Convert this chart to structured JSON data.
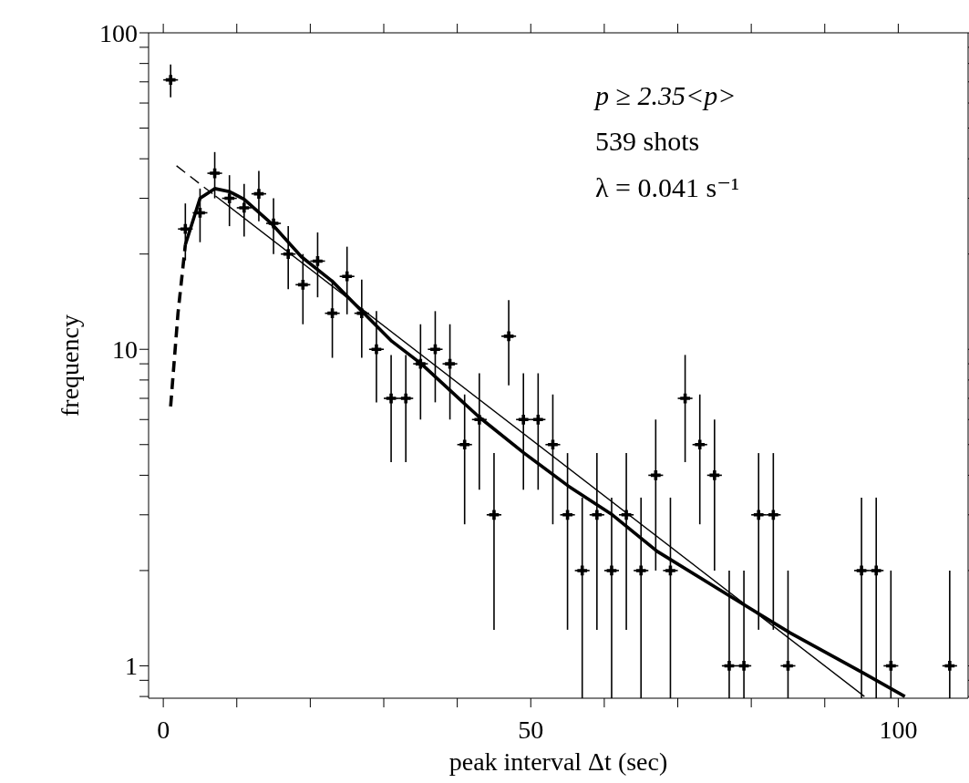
{
  "chart_data": {
    "type": "scatter",
    "xlabel": "peak interval Δt (sec)",
    "ylabel": "frequency",
    "annotations": [
      "p ≥ 2.35<p>",
      "539 shots",
      "λ = 0.041 s⁻¹"
    ],
    "log": "y",
    "xlim": [
      -2,
      109.5
    ],
    "xticks": [
      0,
      {
        "value": 10,
        "label": null
      },
      {
        "value": 20,
        "label": null
      },
      {
        "value": 30,
        "label": null
      },
      {
        "value": 40,
        "label": null
      },
      50,
      {
        "value": 60,
        "label": null
      },
      {
        "value": 70,
        "label": null
      },
      {
        "value": 80,
        "label": null
      },
      {
        "value": 90,
        "label": null
      },
      100
    ],
    "grid": false,
    "ylim": [
      0.79,
      100
    ],
    "yticks": [
      {
        "value": 0.8,
        "label": null
      },
      {
        "value": 0.9,
        "label": null
      },
      1,
      {
        "value": 2,
        "label": null
      },
      {
        "value": 3,
        "label": null
      },
      {
        "value": 4,
        "label": null
      },
      {
        "value": 5,
        "label": null
      },
      {
        "value": 6,
        "label": null
      },
      {
        "value": 7,
        "label": null
      },
      {
        "value": 8,
        "label": null
      },
      {
        "value": 9,
        "label": null
      },
      10,
      {
        "value": 20,
        "label": null
      },
      {
        "value": 30,
        "label": null
      },
      {
        "value": 40,
        "label": null
      },
      {
        "value": 50,
        "label": null
      },
      {
        "value": 60,
        "label": null
      },
      {
        "value": 70,
        "label": null
      },
      {
        "value": 80,
        "label": null
      },
      {
        "value": 90,
        "label": null
      },
      100
    ],
    "series": [
      {
        "color": "#000000",
        "marker": "cross",
        "x": [
          1,
          3,
          5,
          7,
          9,
          11,
          13,
          15,
          17,
          19,
          21,
          23,
          25,
          27,
          29,
          31,
          33,
          35,
          37,
          39,
          41,
          43,
          45,
          47,
          49,
          51,
          53,
          55,
          57,
          59,
          61,
          63,
          65,
          67,
          69,
          71,
          73,
          75,
          77,
          79,
          81,
          83,
          85,
          95,
          97,
          99,
          107
        ],
        "values": [
          71,
          24,
          27,
          36,
          30,
          28,
          31,
          25,
          20,
          16,
          19,
          13,
          17,
          13,
          10,
          7,
          7,
          9,
          10,
          9,
          5,
          6,
          3,
          11,
          6,
          6,
          5,
          3,
          2,
          3,
          2,
          3,
          2,
          4,
          2,
          7,
          5,
          4,
          1,
          1,
          3,
          3,
          1,
          2,
          2,
          1,
          1
        ],
        "errors": [
          8.4,
          4.9,
          5.2,
          6,
          5.5,
          5.3,
          5.6,
          5,
          4.5,
          4,
          4.4,
          3.6,
          4.1,
          3.6,
          3.2,
          2.6,
          2.6,
          3,
          3.2,
          3,
          2.2,
          2.4,
          1.7,
          3.3,
          2.4,
          2.4,
          2.2,
          1.7,
          [
            0.79,
            3.4
          ],
          1.7,
          [
            0.79,
            3.4
          ],
          1.7,
          [
            0.79,
            3.4
          ],
          2,
          [
            0.79,
            3.4
          ],
          2.6,
          2.2,
          2,
          [
            0.79,
            2
          ],
          [
            0.79,
            2
          ],
          1.7,
          1.7,
          [
            0.79,
            2
          ],
          [
            0.79,
            3.4
          ],
          [
            0.79,
            3.4
          ],
          [
            0.79,
            2
          ],
          [
            0.79,
            2
          ]
        ],
        "xerrors": [
          1,
          1,
          1,
          1,
          1,
          1,
          1,
          1,
          1,
          1,
          1,
          1,
          1,
          1,
          1,
          1,
          1,
          1,
          1,
          1,
          1,
          1,
          1,
          1,
          1,
          1,
          1,
          1,
          1,
          1,
          1,
          1,
          1,
          1,
          1,
          1,
          1,
          1,
          1,
          1,
          1,
          1,
          1,
          1,
          1,
          1,
          1
        ]
      },
      {
        "type": "line",
        "color": "#000000",
        "line_style": "dashed",
        "x": [
          1,
          2,
          3
        ],
        "values": [
          6.6,
          13,
          21.4
        ]
      },
      {
        "type": "line",
        "color": "#000000",
        "line_style": "solid",
        "x": [
          3,
          5,
          7,
          9,
          11,
          14.7,
          18.8,
          23,
          27,
          31.1,
          35.1,
          43,
          49.1,
          55.1,
          61.1,
          67.2,
          77.1,
          85.3,
          95.2,
          100.9
        ],
        "values": [
          21.4,
          30,
          32.2,
          31.5,
          29.8,
          25,
          19.6,
          16.4,
          13.2,
          10.6,
          9,
          6.1,
          4.7,
          3.7,
          3,
          2.3,
          1.66,
          1.27,
          0.95,
          0.8
        ]
      },
      {
        "type": "line",
        "color": "#000000",
        "line_style": "dashed",
        "x": [
          1.8,
          7.1
        ],
        "values": [
          38,
          30.5
        ]
      },
      {
        "type": "line",
        "color": "#000000",
        "line_style": "solid",
        "x": [
          7.1,
          95.4
        ],
        "values": [
          30.5,
          0.8
        ]
      }
    ]
  }
}
